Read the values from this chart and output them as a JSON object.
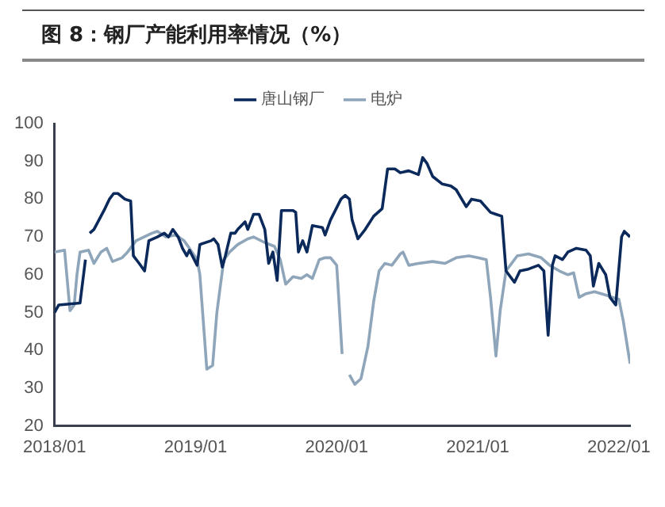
{
  "chart_data": {
    "type": "line",
    "title": "图 8：钢厂产能利用率情况（%）",
    "xlim": [
      "2018-01-01",
      "2022-01-30"
    ],
    "xticks": [
      {
        "value": "2018-01",
        "label": "2018/01"
      },
      {
        "value": "2019-01",
        "label": "2019/01"
      },
      {
        "value": "2020-01",
        "label": "2020/01"
      },
      {
        "value": "2021-01",
        "label": "2021/01"
      },
      {
        "value": "2022-01",
        "label": "2022/01"
      }
    ],
    "ylim": [
      20,
      100
    ],
    "yticks": [
      20,
      30,
      40,
      50,
      60,
      70,
      80,
      90,
      100
    ],
    "grid": false,
    "legend": "top",
    "marker": "none",
    "line_style": "solid",
    "series": [
      {
        "name": "唐山钢厂",
        "color": "#0b2a5b",
        "x": [
          "2018-01-01",
          "2018-01-12",
          "2018-03-08",
          "2018-03-22",
          "2018-03-30",
          "2018-04-02",
          "2018-04-13",
          "2018-05-09",
          "2018-05-23",
          "2018-06-03",
          "2018-06-14",
          "2018-07-02",
          "2018-07-17",
          "2018-07-24",
          "2018-08-08",
          "2018-08-22",
          "2018-09-02",
          "2018-09-24",
          "2018-10-12",
          "2018-10-23",
          "2018-11-03",
          "2018-11-17",
          "2018-11-28",
          "2018-12-09",
          "2018-12-16",
          "2019-01-05",
          "2019-01-12",
          "2019-02-10",
          "2019-02-17",
          "2019-02-28",
          "2019-03-11",
          "2019-03-19",
          "2019-04-02",
          "2019-04-13",
          "2019-04-20",
          "2019-05-09",
          "2019-05-16",
          "2019-05-31",
          "2019-06-14",
          "2019-06-29",
          "2019-07-09",
          "2019-07-20",
          "2019-07-31",
          "2019-08-11",
          "2019-09-10",
          "2019-09-17",
          "2019-09-24",
          "2019-10-05",
          "2019-10-16",
          "2019-10-30",
          "2019-11-25",
          "2019-12-02",
          "2019-12-16",
          "2020-01-12",
          "2020-01-23",
          "2020-02-03",
          "2020-02-10",
          "2020-02-25",
          "2020-03-15",
          "2020-04-06",
          "2020-04-28",
          "2020-05-12",
          "2020-05-31",
          "2020-06-14",
          "2020-07-06",
          "2020-07-31",
          "2020-08-11",
          "2020-08-22",
          "2020-09-06",
          "2020-10-01",
          "2020-10-23",
          "2020-11-06",
          "2020-12-02",
          "2020-12-16",
          "2021-01-08",
          "2021-02-03",
          "2021-02-17",
          "2021-03-04",
          "2021-03-15",
          "2021-04-06",
          "2021-04-20",
          "2021-05-12",
          "2021-06-07",
          "2021-06-21",
          "2021-07-02",
          "2021-07-13",
          "2021-07-20",
          "2021-08-08",
          "2021-08-22",
          "2021-09-13",
          "2021-10-08",
          "2021-10-19",
          "2021-10-27",
          "2021-11-10",
          "2021-11-28",
          "2021-12-09",
          "2021-12-24",
          "2022-01-08",
          "2022-01-15",
          "2022-01-30"
        ],
        "values": [
          50,
          52,
          52.5,
          64,
          null,
          71,
          72,
          77,
          80,
          81.5,
          81.5,
          80,
          79.5,
          65,
          63,
          61,
          69,
          70,
          71,
          70,
          72,
          70,
          67,
          65,
          66.5,
          62.5,
          68,
          69,
          69.5,
          68,
          62,
          65,
          71,
          71,
          72,
          74,
          72,
          76,
          76,
          72,
          63,
          66,
          58.5,
          77,
          77,
          76.5,
          66,
          69,
          66,
          73,
          72.5,
          70.5,
          74.5,
          80,
          81,
          80,
          74.5,
          69.5,
          72,
          75.5,
          77.5,
          88,
          88,
          87,
          87.5,
          86.5,
          91,
          89.5,
          86,
          84,
          83.5,
          82.5,
          78,
          80,
          79.5,
          76.5,
          76,
          75.5,
          61,
          58,
          61,
          61.5,
          62.5,
          61,
          44,
          62.5,
          65,
          64,
          66,
          67,
          66.5,
          65,
          57,
          63,
          60,
          54,
          52,
          70,
          71.5,
          70
        ]
      },
      {
        "name": "电炉",
        "color": "#8fa6ba",
        "x": [
          "2018-01-01",
          "2018-01-27",
          "2018-02-10",
          "2018-02-21",
          "2018-02-28",
          "2018-03-08",
          "2018-03-30",
          "2018-04-13",
          "2018-05-01",
          "2018-05-16",
          "2018-05-31",
          "2018-06-25",
          "2018-07-09",
          "2018-07-31",
          "2018-09-10",
          "2018-09-24",
          "2018-10-16",
          "2018-11-10",
          "2018-12-02",
          "2018-12-16",
          "2019-01-05",
          "2019-01-12",
          "2019-01-30",
          "2019-02-14",
          "2019-02-25",
          "2019-03-15",
          "2019-03-30",
          "2019-04-20",
          "2019-05-16",
          "2019-05-31",
          "2019-06-29",
          "2019-07-24",
          "2019-08-08",
          "2019-08-22",
          "2019-09-10",
          "2019-10-01",
          "2019-10-16",
          "2019-10-30",
          "2019-11-17",
          "2019-12-02",
          "2019-12-16",
          "2020-01-01",
          "2020-01-05",
          "2020-01-15",
          "2020-01-23",
          "2020-02-03",
          "2020-02-17",
          "2020-03-04",
          "2020-03-22",
          "2020-04-06",
          "2020-04-20",
          "2020-05-05",
          "2020-05-23",
          "2020-06-14",
          "2020-06-21",
          "2020-07-06",
          "2020-07-31",
          "2020-09-06",
          "2020-10-08",
          "2020-11-06",
          "2020-12-09",
          "2021-01-01",
          "2021-01-23",
          "2021-02-03",
          "2021-02-17",
          "2021-02-28",
          "2021-03-15",
          "2021-04-13",
          "2021-05-12",
          "2021-06-14",
          "2021-07-06",
          "2021-07-31",
          "2021-08-22",
          "2021-09-06",
          "2021-09-20",
          "2021-10-08",
          "2021-10-30",
          "2021-12-02",
          "2021-12-16",
          "2022-01-01",
          "2022-01-12",
          "2022-01-30"
        ],
        "values": [
          66,
          66.5,
          50.5,
          52,
          60,
          66,
          66.5,
          63,
          66,
          67,
          63.5,
          64.5,
          66,
          69,
          71,
          71.5,
          70,
          70.5,
          69,
          67,
          64,
          60,
          35,
          36,
          50,
          64,
          66,
          68,
          69.5,
          70,
          68.5,
          67.5,
          64,
          57.5,
          59.5,
          59,
          60,
          59,
          64,
          64.5,
          64.5,
          62.5,
          56,
          39,
          null,
          33.5,
          31,
          32.5,
          41,
          53,
          61,
          63,
          62.5,
          65.5,
          66,
          62.5,
          63,
          63.5,
          63,
          64.5,
          65,
          64.5,
          64,
          54,
          38.5,
          50.5,
          61,
          65,
          65.5,
          64.5,
          62.5,
          61,
          60,
          60.5,
          54,
          55,
          55.5,
          54.5,
          54,
          53.5,
          48,
          36.5
        ]
      }
    ]
  }
}
